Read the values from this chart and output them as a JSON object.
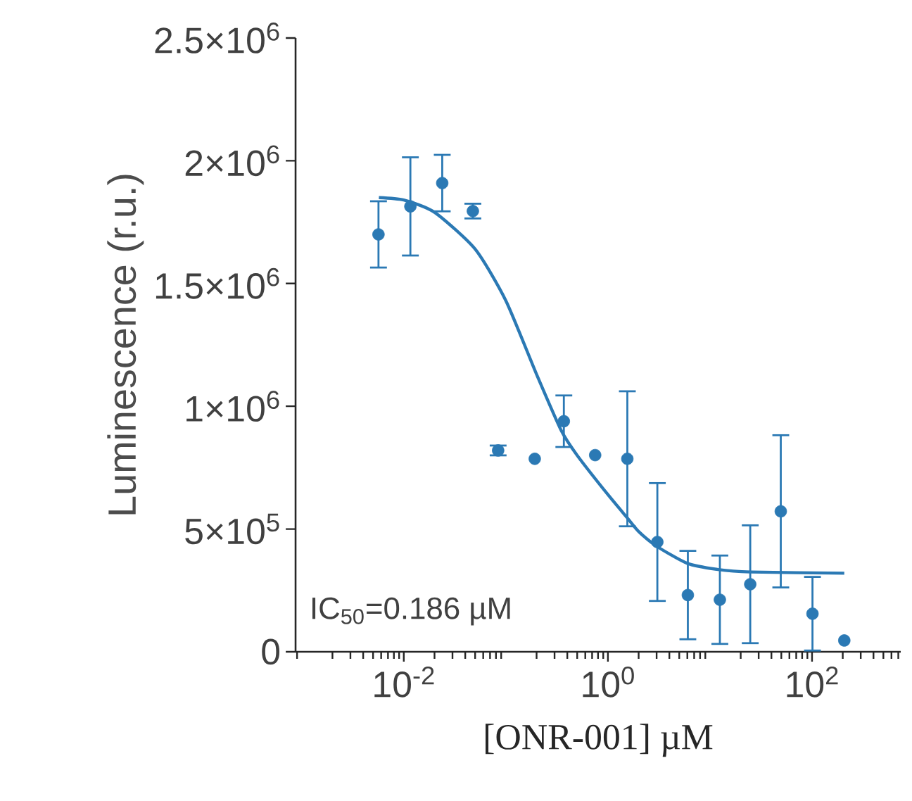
{
  "chart_data": {
    "type": "scatter",
    "xlabel": "[ONR-001] µM",
    "ylabel": "Luminescence (r.u.)",
    "log": "x",
    "grid": false,
    "xlim": [
      0.00087,
      740
    ],
    "ylim": [
      0,
      2500000
    ],
    "xticks": [
      {
        "value": 0.01,
        "label": "10$^{-2}$"
      },
      {
        "value": 1,
        "label": "10$^{0}$"
      },
      {
        "value": 100,
        "label": "10$^{2}$"
      }
    ],
    "yticks": [
      {
        "value": 0,
        "label": "0"
      },
      {
        "value": 500000,
        "label": "5×10$^{5}$"
      },
      {
        "value": 1000000,
        "label": "1×10$^{6}$"
      },
      {
        "value": 1500000,
        "label": "1.5×10$^{6}$"
      },
      {
        "value": 2000000,
        "label": "2×10$^{6}$"
      },
      {
        "value": 2500000,
        "label": "2.5×10$^{6}$"
      }
    ],
    "annotations": [
      "IC$_{50}$=0.186 µM"
    ],
    "series": [
      {
        "color": "#2b79b4",
        "marker": "circle",
        "x": [
          0.00565,
          0.0116,
          0.0238,
          0.0475,
          0.084,
          0.192,
          0.37,
          0.75,
          1.55,
          3.05,
          6.07,
          12.5,
          24.8,
          49.4,
          101,
          207
        ],
        "values": [
          1700000,
          1814000,
          1909000,
          1795000,
          820000,
          786000,
          939000,
          801000,
          786000,
          447000,
          231000,
          212000,
          275000,
          572000,
          155000,
          46000
        ],
        "errors": [
          135000,
          200000,
          115000,
          30000,
          20000,
          null,
          105000,
          null,
          275000,
          240000,
          180000,
          180000,
          240000,
          310000,
          150000,
          null
        ]
      },
      {
        "type": "line",
        "color": "#2b79b4",
        "marker": "none",
        "x": [
          0.0057,
          0.01,
          0.02,
          0.05,
          0.1,
          0.2,
          0.35,
          0.5,
          1,
          1.55,
          2,
          3,
          6,
          12,
          25,
          207
        ],
        "values": [
          1850000,
          1840000,
          1790000,
          1640000,
          1430000,
          1130000,
          900000,
          800000,
          640000,
          545000,
          490000,
          430000,
          360000,
          335000,
          325000,
          320000
        ]
      }
    ]
  }
}
